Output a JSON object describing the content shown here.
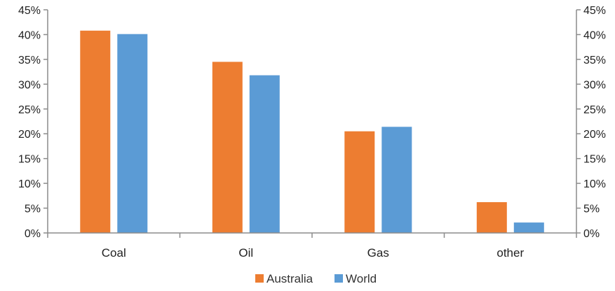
{
  "chart_data": {
    "type": "bar",
    "categories": [
      "Coal",
      "Oil",
      "Gas",
      "other"
    ],
    "series": [
      {
        "name": "Australia",
        "color": "#ED7D31",
        "values": [
          40.8,
          34.5,
          20.5,
          6.2
        ]
      },
      {
        "name": "World",
        "color": "#5B9BD5",
        "values": [
          40.1,
          31.8,
          21.4,
          2.1
        ]
      }
    ],
    "ylim": [
      0,
      45
    ],
    "ytick_step": 5,
    "ytick_suffix": "%",
    "secondary_y_axis": true,
    "grid": false,
    "legend_position": "bottom-center",
    "title": "",
    "xlabel": "",
    "ylabel": ""
  }
}
